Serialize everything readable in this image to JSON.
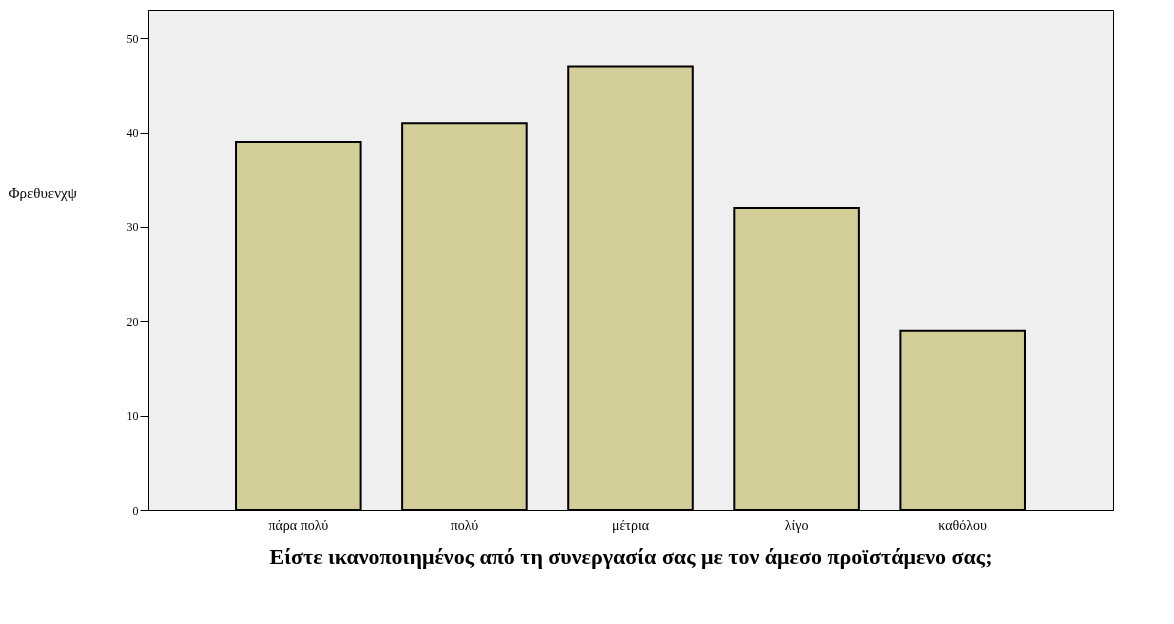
{
  "chart_data": {
    "type": "bar",
    "xlabel": "Είστε ικανοποιημένος από τη συνεργασία σας με τον άμεσο προϊστάμενο σας;",
    "ylabel": "Φρεθυενχψ",
    "categories": [
      "πάρα πολύ",
      "πολύ",
      "μέτρια",
      "λίγο",
      "καθόλου"
    ],
    "values": [
      39,
      41,
      47,
      32,
      19
    ],
    "color": "#d3cd98",
    "ylim": [
      0,
      53
    ],
    "yticks": [
      0,
      10,
      20,
      30,
      40,
      50
    ],
    "grid": false
  }
}
